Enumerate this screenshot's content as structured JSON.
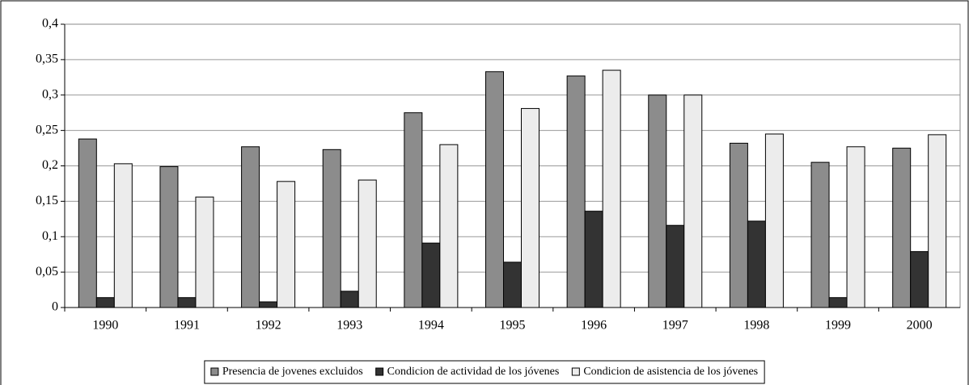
{
  "chart_data": {
    "type": "bar",
    "categories": [
      "1990",
      "1991",
      "1992",
      "1993",
      "1994",
      "1995",
      "1996",
      "1997",
      "1998",
      "1999",
      "2000"
    ],
    "series": [
      {
        "name": "Presencia de jovenes excluidos",
        "color": "#8c8c8c",
        "values": [
          0.238,
          0.199,
          0.227,
          0.223,
          0.275,
          0.333,
          0.327,
          0.3,
          0.232,
          0.205,
          0.225
        ]
      },
      {
        "name": "Condicion de actividad de los jóvenes",
        "color": "#333333",
        "values": [
          0.014,
          0.014,
          0.008,
          0.023,
          0.091,
          0.064,
          0.136,
          0.116,
          0.122,
          0.014,
          0.079
        ]
      },
      {
        "name": "Condicion de asistencia de los jóvenes",
        "color": "#ececec",
        "values": [
          0.203,
          0.156,
          0.178,
          0.18,
          0.23,
          0.281,
          0.335,
          0.3,
          0.245,
          0.227,
          0.244
        ]
      }
    ],
    "ylim": [
      0,
      0.4
    ],
    "yticks": [
      0,
      {
        "value": 0.05,
        "label": "0,05"
      },
      {
        "value": 0.1,
        "label": "0,1"
      },
      {
        "value": 0.15,
        "label": "0,15"
      },
      {
        "value": 0.2,
        "label": "0,2"
      },
      {
        "value": 0.25,
        "label": "0,25"
      },
      {
        "value": 0.3,
        "label": "0,3"
      },
      {
        "value": 0.35,
        "label": "0,35"
      },
      {
        "value": 0.4,
        "label": "0,4"
      }
    ],
    "grid": true,
    "legend": "bottom"
  }
}
